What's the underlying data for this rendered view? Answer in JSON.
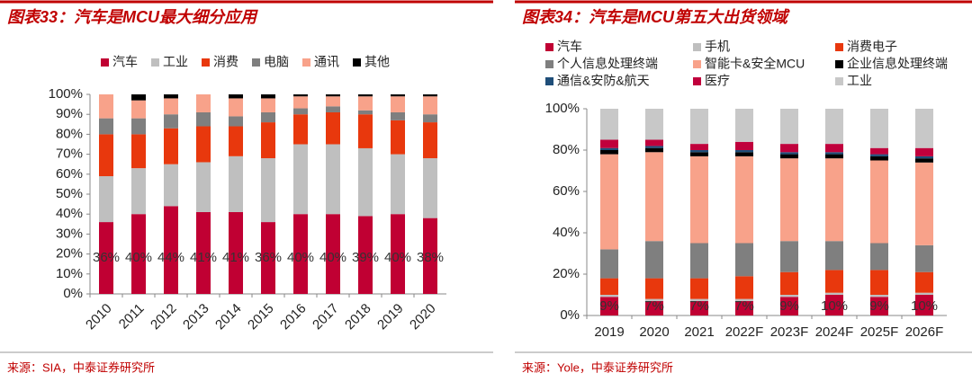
{
  "chart_data": [
    {
      "type": "stacked_bar",
      "title": "图表33：汽车是MCU最大细分应用",
      "source": "来源：SIA，中泰证券研究所",
      "categories": [
        "2010",
        "2011",
        "2012",
        "2013",
        "2014",
        "2015",
        "2016",
        "2017",
        "2018",
        "2019",
        "2020"
      ],
      "series": [
        {
          "name": "汽车",
          "color": "#c00033",
          "values": [
            36,
            40,
            44,
            41,
            41,
            36,
            40,
            40,
            39,
            40,
            38
          ],
          "value_labels": [
            "36%",
            "40%",
            "44%",
            "41%",
            "41%",
            "36%",
            "40%",
            "40%",
            "39%",
            "40%",
            "38%"
          ]
        },
        {
          "name": "工业",
          "color": "#bfbfbf",
          "values": [
            23,
            23,
            21,
            25,
            28,
            32,
            35,
            35,
            34,
            30,
            30
          ]
        },
        {
          "name": "消费",
          "color": "#e8380d",
          "values": [
            21,
            17,
            18,
            18,
            15,
            18,
            15,
            16,
            17,
            17,
            18
          ]
        },
        {
          "name": "电脑",
          "color": "#7f7f7f",
          "values": [
            8,
            8,
            7,
            7,
            5,
            5,
            3,
            3,
            2,
            4,
            4
          ]
        },
        {
          "name": "通讯",
          "color": "#f8a28a",
          "values": [
            12,
            9,
            8,
            9,
            9,
            7,
            6,
            5,
            7,
            8,
            9
          ]
        },
        {
          "name": "其他",
          "color": "#000000",
          "values": [
            0,
            3,
            2,
            0,
            2,
            2,
            1,
            1,
            1,
            1,
            1
          ]
        }
      ],
      "ylim": [
        0,
        100
      ],
      "yticks": [
        {
          "value": 0,
          "label": "0%"
        },
        {
          "value": 10,
          "label": "10%"
        },
        {
          "value": 20,
          "label": "20%"
        },
        {
          "value": 30,
          "label": "30%"
        },
        {
          "value": 40,
          "label": "40%"
        },
        {
          "value": 50,
          "label": "50%"
        },
        {
          "value": 60,
          "label": "60%"
        },
        {
          "value": 70,
          "label": "70%"
        },
        {
          "value": 80,
          "label": "80%"
        },
        {
          "value": 90,
          "label": "90%"
        },
        {
          "value": 100,
          "label": "100%"
        }
      ]
    },
    {
      "type": "stacked_bar",
      "title": "图表34：汽车是MCU第五大出货领域",
      "source": "来源：Yole，中泰证券研究所",
      "categories": [
        "2019",
        "2020",
        "2021",
        "2022F",
        "2023F",
        "2024F",
        "2025F",
        "2026F"
      ],
      "series": [
        {
          "name": "汽车",
          "color": "#c00033",
          "values": [
            9,
            7,
            7,
            7,
            9,
            10,
            9,
            10
          ],
          "value_labels": [
            "9%",
            "7%",
            "7%",
            "7%",
            "9%",
            "10%",
            "9%",
            "10%"
          ]
        },
        {
          "name": "手机",
          "color": "#bfbfbf",
          "values": [
            1,
            1,
            1,
            1,
            1,
            1,
            1,
            1
          ]
        },
        {
          "name": "消费电子",
          "color": "#e8380d",
          "values": [
            8,
            10,
            10,
            11,
            11,
            11,
            12,
            10
          ]
        },
        {
          "name": "个人信息处理终端",
          "color": "#7f7f7f",
          "values": [
            14,
            18,
            17,
            16,
            15,
            14,
            13,
            13
          ]
        },
        {
          "name": "智能卡&安全MCU",
          "color": "#f8a28a",
          "values": [
            46,
            43,
            42,
            42,
            40,
            40,
            40,
            40
          ]
        },
        {
          "name": "企业信息处理终端",
          "color": "#000000",
          "values": [
            2,
            2,
            2,
            2,
            2,
            2,
            2,
            2
          ]
        },
        {
          "name": "通信&安防&航天",
          "color": "#1f4e79",
          "values": [
            1,
            1,
            1,
            1,
            1,
            1,
            1,
            1
          ]
        },
        {
          "name": "医疗",
          "color": "#c0003c",
          "values": [
            4,
            3,
            3,
            4,
            4,
            4,
            3,
            4
          ]
        },
        {
          "name": "工业",
          "color": "#c8c8c8",
          "values": [
            15,
            15,
            17,
            16,
            17,
            17,
            19,
            19
          ]
        }
      ],
      "ylim": [
        0,
        100
      ],
      "yticks": [
        {
          "value": 0,
          "label": "0%"
        },
        {
          "value": 20,
          "label": "20%"
        },
        {
          "value": 40,
          "label": "40%"
        },
        {
          "value": 60,
          "label": "60%"
        },
        {
          "value": 80,
          "label": "80%"
        },
        {
          "value": 100,
          "label": "100%"
        }
      ]
    }
  ]
}
